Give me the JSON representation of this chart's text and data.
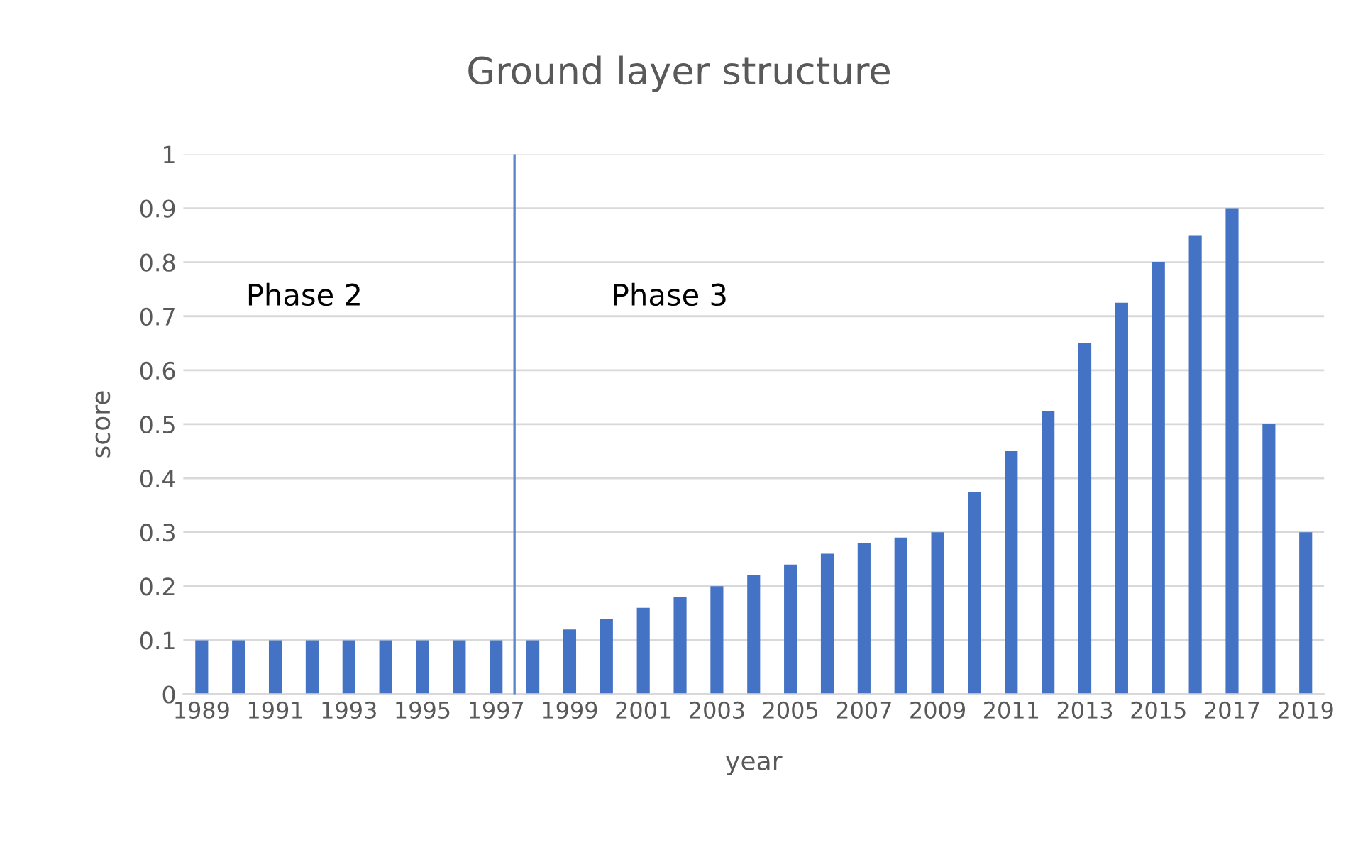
{
  "chart_data": {
    "type": "bar",
    "title": "Ground layer structure",
    "xlabel": "year",
    "ylabel": "score",
    "x": [
      1989,
      1990,
      1991,
      1992,
      1993,
      1994,
      1995,
      1996,
      1997,
      1998,
      1999,
      2000,
      2001,
      2002,
      2003,
      2004,
      2005,
      2006,
      2007,
      2008,
      2009,
      2010,
      2011,
      2012,
      2013,
      2014,
      2015,
      2016,
      2017,
      2018,
      2019
    ],
    "values": [
      0.1,
      0.1,
      0.1,
      0.1,
      0.1,
      0.1,
      0.1,
      0.1,
      0.1,
      0.1,
      0.12,
      0.14,
      0.16,
      0.18,
      0.2,
      0.22,
      0.24,
      0.26,
      0.28,
      0.29,
      0.3,
      0.375,
      0.45,
      0.525,
      0.65,
      0.725,
      0.8,
      0.85,
      0.9,
      0.5,
      0.3
    ],
    "color": "#4472c4",
    "xlim": [
      1988.5,
      2019.5
    ],
    "xticks": [
      1989,
      1991,
      1993,
      1995,
      1997,
      1999,
      2001,
      2003,
      2005,
      2007,
      2009,
      2011,
      2013,
      2015,
      2017,
      2019
    ],
    "ylim": [
      0,
      1
    ],
    "yticks": [
      0,
      0.1,
      0.2,
      0.3,
      0.4,
      0.5,
      0.6,
      0.7,
      0.8,
      0.9,
      1
    ],
    "grid": "y",
    "ref_lines": [
      {
        "axis": "x",
        "value": 1997.5,
        "color": "#5b86c9"
      }
    ],
    "annotations": [
      "Phase 2",
      "Phase 3"
    ]
  }
}
